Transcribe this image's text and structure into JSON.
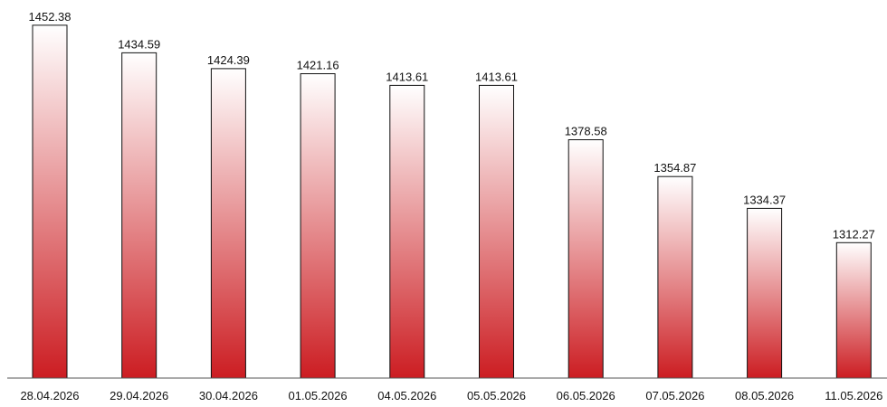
{
  "colors": {
    "bar_top": "#ffffff",
    "bar_bottom": "#cc1d22",
    "bar_stroke": "#111111",
    "axis": "#555555",
    "text": "#111111"
  },
  "chart_data": {
    "type": "bar",
    "title": "",
    "xlabel": "",
    "ylabel": "",
    "categories": [
      "28.04.2026",
      "29.04.2026",
      "30.04.2026",
      "01.05.2026",
      "04.05.2026",
      "05.05.2026",
      "06.05.2026",
      "07.05.2026",
      "08.05.2026",
      "11.05.2026"
    ],
    "values": [
      1452.38,
      1434.59,
      1424.39,
      1421.16,
      1413.61,
      1413.61,
      1378.58,
      1354.87,
      1334.37,
      1312.27
    ],
    "value_labels": [
      "1452.38",
      "1434.59",
      "1424.39",
      "1421.16",
      "1413.61",
      "1413.61",
      "1378.58",
      "1354.87",
      "1334.37",
      "1312.27"
    ],
    "ylim": [
      1225,
      1457
    ],
    "grid": false,
    "legend": "none",
    "data_labels": "above bars"
  }
}
